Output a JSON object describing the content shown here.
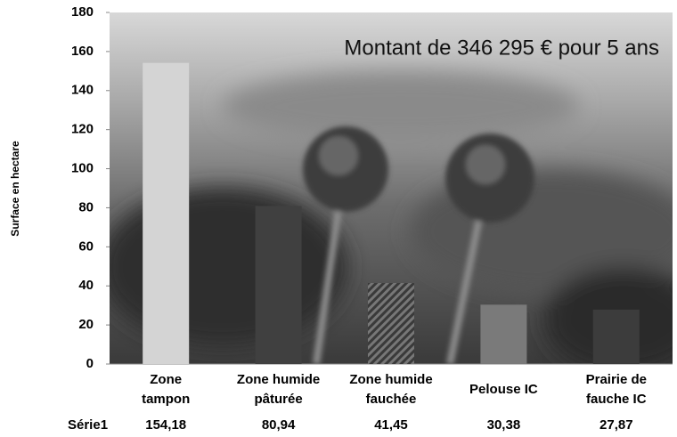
{
  "chart_data": {
    "type": "bar",
    "annotation": "Montant de 346 295 € pour 5 ans",
    "y_label": "Surface en hectare",
    "categories": [
      "Zone\ntampon",
      "Zone humide\npâturée",
      "Zone humide\nfauchée",
      "Pelouse IC",
      "Prairie de\nfauche IC"
    ],
    "series": [
      {
        "name": "Série1",
        "values": [
          154.18,
          80.94,
          41.45,
          30.38,
          27.87
        ],
        "value_labels": [
          "154,18",
          "80,94",
          "41,45",
          "30,38",
          "27,87"
        ],
        "colors": [
          "#d4d4d4",
          "#404040",
          "#5a5a5a",
          "#7a7a7a",
          "#3c3c3c"
        ],
        "hatched": [
          false,
          false,
          true,
          false,
          false
        ]
      }
    ],
    "ylim": [
      0,
      180
    ],
    "yticks": [
      0,
      20,
      40,
      60,
      80,
      100,
      120,
      140,
      160,
      180
    ]
  }
}
